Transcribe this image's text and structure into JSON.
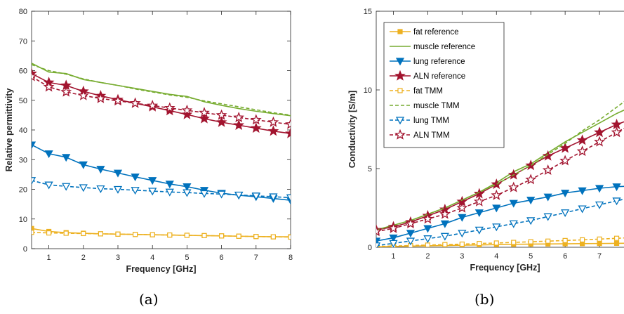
{
  "colors": {
    "fat": "#EDB120",
    "muscle": "#77AC30",
    "lung": "#0072BD",
    "aln": "#A2142F",
    "axis": "#262626",
    "grid": "#e6e6e6"
  },
  "charts": [
    {
      "caption": "(a)",
      "chart_data": {
        "type": "line",
        "xlabel": "Frequency [GHz]",
        "ylabel": "Relative permittivity",
        "xlim": [
          0.5,
          8
        ],
        "ylim": [
          0,
          80
        ],
        "xticks": [
          "1",
          "2",
          "3",
          "4",
          "5",
          "6",
          "7",
          "8"
        ],
        "yticks": [
          "0",
          "10",
          "20",
          "30",
          "40",
          "50",
          "60",
          "70",
          "80"
        ],
        "grid": false,
        "legend": "none",
        "series": [
          {
            "key": "fat_ref",
            "color": "fat",
            "dash": false,
            "marker": "square-filled",
            "x": [
              0.5,
              1,
              1.5,
              2,
              2.5,
              3,
              3.5,
              4,
              4.5,
              5,
              5.5,
              6,
              6.5,
              7,
              7.5,
              8
            ],
            "y": [
              6.8,
              5.8,
              5.4,
              5.2,
              5.0,
              4.9,
              4.8,
              4.7,
              4.6,
              4.5,
              4.4,
              4.3,
              4.2,
              4.1,
              4.0,
              4.0
            ]
          },
          {
            "key": "muscle_ref",
            "color": "muscle",
            "dash": false,
            "marker": "none",
            "x": [
              0.5,
              1,
              1.5,
              2,
              2.5,
              3,
              3.5,
              4,
              4.5,
              5,
              5.5,
              6,
              6.5,
              7,
              7.5,
              8
            ],
            "y": [
              62.5,
              59.5,
              59.0,
              57.0,
              56.0,
              55.0,
              54.0,
              53.0,
              52.0,
              51.3,
              49.5,
              48.3,
              47.2,
              46.3,
              45.5,
              44.8
            ]
          },
          {
            "key": "lung_ref",
            "color": "lung",
            "dash": false,
            "marker": "triangle-down-filled",
            "x": [
              0.5,
              1,
              1.5,
              2,
              2.5,
              3,
              3.5,
              4,
              4.5,
              5,
              5.5,
              6,
              6.5,
              7,
              7.5,
              8
            ],
            "y": [
              35.0,
              32.0,
              30.8,
              28.3,
              26.8,
              25.5,
              24.2,
              23.0,
              21.8,
              20.9,
              19.7,
              18.7,
              18.0,
              17.5,
              16.9,
              16.3
            ]
          },
          {
            "key": "aln_ref",
            "color": "aln",
            "dash": false,
            "marker": "star-filled",
            "x": [
              0.5,
              1,
              1.5,
              2,
              2.5,
              3,
              3.5,
              4,
              4.5,
              5,
              5.5,
              6,
              6.5,
              7,
              7.5,
              8
            ],
            "y": [
              59.0,
              56.0,
              55.0,
              53.0,
              51.5,
              50.2,
              49.0,
              47.8,
              46.5,
              45.2,
              43.8,
              42.6,
              41.6,
              40.6,
              39.6,
              38.8
            ]
          },
          {
            "key": "fat_tmm",
            "color": "fat",
            "dash": true,
            "marker": "square-open",
            "x": [
              0.5,
              1,
              1.5,
              2,
              2.5,
              3,
              3.5,
              4,
              4.5,
              5,
              5.5,
              6,
              6.5,
              7,
              7.5,
              8
            ],
            "y": [
              5.5,
              5.3,
              5.2,
              5.1,
              5.0,
              4.9,
              4.8,
              4.7,
              4.6,
              4.5,
              4.4,
              4.3,
              4.2,
              4.1,
              4.0,
              3.9
            ]
          },
          {
            "key": "muscle_tmm",
            "color": "muscle",
            "dash": true,
            "marker": "none",
            "x": [
              0.5,
              1,
              1.5,
              2,
              2.5,
              3,
              3.5,
              4,
              4.5,
              5,
              5.5,
              6,
              6.5,
              7,
              7.5,
              8
            ],
            "y": [
              62.0,
              60.0,
              58.8,
              57.2,
              56.0,
              55.0,
              53.8,
              52.8,
              51.8,
              51.0,
              49.8,
              48.8,
              47.8,
              46.8,
              45.8,
              45.0
            ]
          },
          {
            "key": "lung_tmm",
            "color": "lung",
            "dash": true,
            "marker": "triangle-down-open",
            "x": [
              0.5,
              1,
              1.5,
              2,
              2.5,
              3,
              3.5,
              4,
              4.5,
              5,
              5.5,
              6,
              6.5,
              7,
              7.5,
              8
            ],
            "y": [
              23.0,
              21.5,
              21.0,
              20.6,
              20.2,
              20.0,
              19.7,
              19.4,
              19.1,
              18.9,
              18.6,
              18.4,
              18.1,
              17.8,
              17.5,
              17.2
            ]
          },
          {
            "key": "aln_tmm",
            "color": "aln",
            "dash": true,
            "marker": "star-open",
            "x": [
              0.5,
              1,
              1.5,
              2,
              2.5,
              3,
              3.5,
              4,
              4.5,
              5,
              5.5,
              6,
              6.5,
              7,
              7.5,
              8
            ],
            "y": [
              58.0,
              54.5,
              52.8,
              51.6,
              50.6,
              49.8,
              49.0,
              48.2,
              47.4,
              46.6,
              45.8,
              45.0,
              44.2,
              43.4,
              42.6,
              41.9
            ]
          }
        ]
      }
    },
    {
      "caption": "(b)",
      "chart_data": {
        "type": "line",
        "xlabel": "Frequency [GHz]",
        "ylabel": "Conductivity [S/m]",
        "xlim": [
          0.5,
          8
        ],
        "ylim": [
          0,
          15
        ],
        "xticks": [
          "1",
          "2",
          "3",
          "4",
          "5",
          "6",
          "7"
        ],
        "xtick_values": [
          1,
          2,
          3,
          4,
          5,
          6,
          7
        ],
        "yticks": [
          "0",
          "5",
          "10",
          "15"
        ],
        "ytick_values": [
          0,
          5,
          10,
          15
        ],
        "grid": false,
        "legend": "top-left",
        "series": [
          {
            "key": "fat_ref",
            "name": "fat reference",
            "color": "fat",
            "dash": false,
            "marker": "square-filled",
            "x": [
              0.5,
              1,
              1.5,
              2,
              2.5,
              3,
              3.5,
              4,
              4.5,
              5,
              5.5,
              6,
              6.5,
              7,
              7.5,
              8
            ],
            "y": [
              0.03,
              0.05,
              0.07,
              0.09,
              0.11,
              0.13,
              0.15,
              0.17,
              0.19,
              0.2,
              0.21,
              0.22,
              0.23,
              0.24,
              0.25,
              0.26
            ]
          },
          {
            "key": "muscle_ref",
            "name": "muscle reference",
            "color": "muscle",
            "dash": false,
            "marker": "none",
            "x": [
              0.5,
              1,
              1.5,
              2,
              2.5,
              3,
              3.5,
              4,
              4.5,
              5,
              5.5,
              6,
              6.5,
              7,
              7.5,
              8
            ],
            "y": [
              1.1,
              1.4,
              1.7,
              2.1,
              2.5,
              3.0,
              3.5,
              4.1,
              4.8,
              5.3,
              6.0,
              6.7,
              7.3,
              7.9,
              8.5,
              9.0
            ]
          },
          {
            "key": "lung_ref",
            "name": "lung reference",
            "color": "lung",
            "dash": false,
            "marker": "triangle-down-filled",
            "x": [
              0.5,
              1,
              1.5,
              2,
              2.5,
              3,
              3.5,
              4,
              4.5,
              5,
              5.5,
              6,
              6.5,
              7,
              7.5,
              8
            ],
            "y": [
              0.4,
              0.6,
              0.9,
              1.2,
              1.5,
              1.9,
              2.2,
              2.5,
              2.8,
              3.0,
              3.2,
              3.45,
              3.6,
              3.75,
              3.85,
              3.9
            ]
          },
          {
            "key": "aln_ref",
            "name": "ALN reference",
            "color": "aln",
            "dash": false,
            "marker": "star-filled",
            "x": [
              0.5,
              1,
              1.5,
              2,
              2.5,
              3,
              3.5,
              4,
              4.5,
              5,
              5.5,
              6,
              6.5,
              7,
              7.5,
              8
            ],
            "y": [
              1.1,
              1.3,
              1.6,
              2.0,
              2.4,
              2.9,
              3.4,
              4.0,
              4.6,
              5.2,
              5.8,
              6.3,
              6.8,
              7.3,
              7.8,
              8.2
            ]
          },
          {
            "key": "fat_tmm",
            "name": "fat TMM",
            "color": "fat",
            "dash": true,
            "marker": "square-open",
            "x": [
              0.5,
              1,
              1.5,
              2,
              2.5,
              3,
              3.5,
              4,
              4.5,
              5,
              5.5,
              6,
              6.5,
              7,
              7.5,
              8
            ],
            "y": [
              0.05,
              0.08,
              0.11,
              0.14,
              0.17,
              0.2,
              0.24,
              0.27,
              0.31,
              0.35,
              0.39,
              0.43,
              0.47,
              0.52,
              0.57,
              0.62
            ]
          },
          {
            "key": "muscle_tmm",
            "name": "muscle TMM",
            "color": "muscle",
            "dash": true,
            "marker": "none",
            "x": [
              0.5,
              1,
              1.5,
              2,
              2.5,
              3,
              3.5,
              4,
              4.5,
              5,
              5.5,
              6,
              6.5,
              7,
              7.5,
              8
            ],
            "y": [
              1.1,
              1.4,
              1.7,
              2.1,
              2.5,
              3.0,
              3.5,
              4.0,
              4.6,
              5.2,
              5.9,
              6.6,
              7.4,
              8.1,
              8.9,
              9.7
            ]
          },
          {
            "key": "lung_tmm",
            "name": "lung TMM",
            "color": "lung",
            "dash": true,
            "marker": "triangle-down-open",
            "x": [
              0.5,
              1,
              1.5,
              2,
              2.5,
              3,
              3.5,
              4,
              4.5,
              5,
              5.5,
              6,
              6.5,
              7,
              7.5,
              8
            ],
            "y": [
              0.1,
              0.25,
              0.4,
              0.55,
              0.7,
              0.9,
              1.1,
              1.3,
              1.5,
              1.7,
              1.95,
              2.2,
              2.45,
              2.7,
              2.95,
              3.2
            ]
          },
          {
            "key": "aln_tmm",
            "name": "ALN TMM",
            "color": "aln",
            "dash": true,
            "marker": "star-open",
            "x": [
              0.5,
              1,
              1.5,
              2,
              2.5,
              3,
              3.5,
              4,
              4.5,
              5,
              5.5,
              6,
              6.5,
              7,
              7.5,
              8
            ],
            "y": [
              1.0,
              1.2,
              1.5,
              1.8,
              2.1,
              2.5,
              2.9,
              3.3,
              3.8,
              4.3,
              4.9,
              5.5,
              6.1,
              6.7,
              7.3,
              7.9
            ]
          }
        ]
      }
    }
  ]
}
